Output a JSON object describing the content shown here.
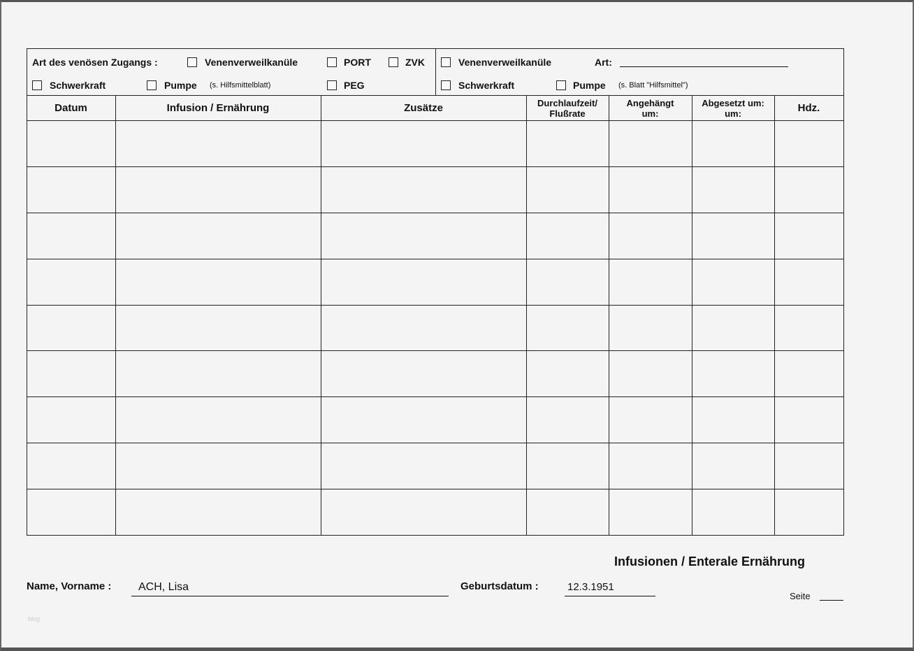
{
  "access": {
    "label": "Art des venösen Zugangs :",
    "left_options": [
      {
        "label": "Venenverweilkanüle",
        "checked": false
      },
      {
        "label": "PORT",
        "checked": false
      },
      {
        "label": "ZVK",
        "checked": false
      },
      {
        "label": "Schwerkraft",
        "checked": false
      },
      {
        "label": "Pumpe",
        "note": "(s. Hilfsmittelblatt)",
        "checked": false
      },
      {
        "label": "PEG",
        "checked": false
      }
    ],
    "right_options": [
      {
        "label": "Venenverweilkanüle",
        "checked": false
      },
      {
        "label": "Schwerkraft",
        "checked": false
      },
      {
        "label": "Pumpe",
        "note": "(s. Blatt \"Hilfsmittel\")",
        "checked": false
      }
    ],
    "art_label": "Art:",
    "art_value": ""
  },
  "table": {
    "columns": [
      "Datum",
      "Infusion / Ernährung",
      "Zusätze",
      "Durchlaufzeit/ Flußrate",
      "Angehängt um:",
      "Abgesetzt um: um:",
      "Hdz."
    ],
    "rows": [
      [
        "",
        "",
        "",
        "",
        "",
        "",
        ""
      ],
      [
        "",
        "",
        "",
        "",
        "",
        "",
        ""
      ],
      [
        "",
        "",
        "",
        "",
        "",
        "",
        ""
      ],
      [
        "",
        "",
        "",
        "",
        "",
        "",
        ""
      ],
      [
        "",
        "",
        "",
        "",
        "",
        "",
        ""
      ],
      [
        "",
        "",
        "",
        "",
        "",
        "",
        ""
      ],
      [
        "",
        "",
        "",
        "",
        "",
        "",
        ""
      ],
      [
        "",
        "",
        "",
        "",
        "",
        "",
        ""
      ],
      [
        "",
        "",
        "",
        "",
        "",
        "",
        ""
      ]
    ]
  },
  "footer": {
    "title": "Infusionen / Enterale Ernährung",
    "name_label": "Name, Vorname :",
    "name_value": "ACH, Lisa",
    "dob_label": "Geburtsdatum :",
    "dob_value": "12.3.1951",
    "page_label": "Seite",
    "watermark": "blog"
  }
}
